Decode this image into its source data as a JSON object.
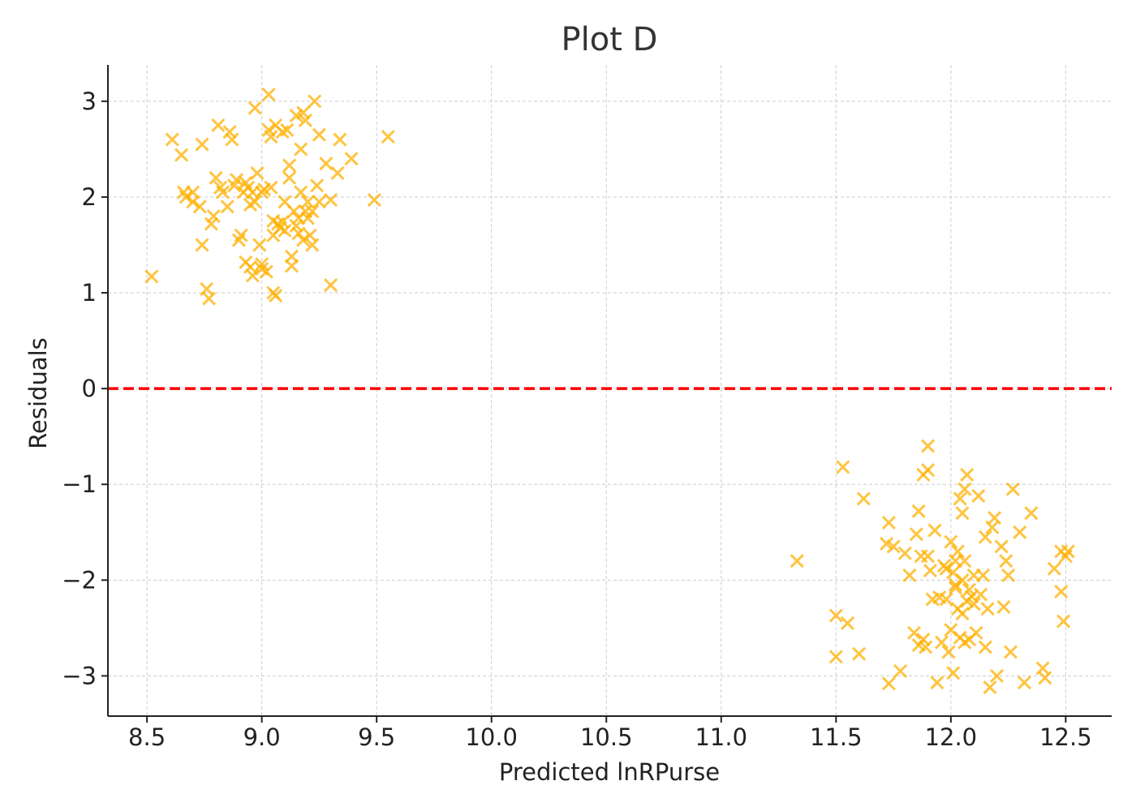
{
  "chart_data": {
    "type": "scatter",
    "title": "Plot D",
    "xlabel": "Predicted lnRPurse",
    "ylabel": "Residuals",
    "xlim": [
      8.33,
      12.7
    ],
    "ylim": [
      -3.42,
      3.38
    ],
    "xticks": [
      8.5,
      9.0,
      9.5,
      10.0,
      10.5,
      11.0,
      11.5,
      12.0,
      12.5
    ],
    "xtick_labels": [
      "8.5",
      "9.0",
      "9.5",
      "10.0",
      "10.5",
      "11.0",
      "11.5",
      "12.0",
      "12.5"
    ],
    "yticks": [
      3,
      2,
      1,
      0,
      -1,
      -2,
      -3
    ],
    "ytick_labels": [
      "3",
      "2",
      "1",
      "0",
      "−1",
      "−2",
      "−3"
    ],
    "grid": true,
    "reference_line": {
      "y": 0,
      "style": "dashed"
    },
    "marker": "x",
    "colors": {
      "points": "#FFB000",
      "reference_line": "#FF0000",
      "grid": "#cccccc",
      "axis": "#222222"
    },
    "series": [
      {
        "x": [
          8.52,
          8.61,
          8.65,
          8.66,
          8.67,
          8.7,
          8.73,
          8.74,
          8.74,
          8.76,
          8.77,
          8.78,
          8.79,
          8.8,
          8.81,
          8.83,
          8.85,
          8.86,
          8.87,
          8.88,
          8.9,
          8.91,
          8.92,
          8.93,
          8.94,
          8.95,
          8.96,
          8.96,
          8.97,
          8.98,
          8.99,
          9.0,
          9.0,
          9.02,
          9.03,
          9.03,
          9.04,
          9.04,
          9.05,
          9.05,
          9.06,
          9.06,
          9.07,
          9.08,
          9.09,
          9.1,
          9.11,
          9.12,
          9.13,
          9.13,
          9.14,
          9.15,
          9.15,
          9.16,
          9.16,
          9.17,
          9.17,
          9.18,
          9.18,
          9.19,
          9.19,
          9.2,
          9.2,
          9.21,
          9.22,
          9.23,
          9.24,
          9.25,
          9.25,
          9.28,
          9.3,
          9.3,
          9.33,
          9.34,
          9.39,
          9.49,
          9.55,
          8.7,
          8.82,
          8.93,
          8.97,
          9.0,
          9.05,
          9.1,
          9.12,
          9.22,
          8.89,
          8.95,
          9.01,
          9.09
        ],
        "y": [
          1.17,
          2.6,
          2.44,
          2.05,
          2.0,
          1.95,
          1.9,
          2.55,
          1.5,
          1.04,
          0.94,
          1.72,
          1.8,
          2.2,
          2.75,
          2.05,
          1.9,
          2.68,
          2.6,
          2.12,
          1.55,
          1.6,
          2.05,
          1.32,
          2.1,
          1.27,
          2.05,
          1.18,
          2.93,
          2.25,
          1.5,
          1.25,
          2.05,
          1.22,
          3.07,
          2.7,
          2.63,
          2.1,
          1.0,
          1.6,
          2.75,
          0.97,
          1.72,
          1.68,
          2.68,
          1.95,
          2.7,
          2.33,
          1.28,
          1.38,
          1.85,
          2.85,
          1.7,
          1.78,
          1.62,
          2.5,
          2.05,
          2.88,
          1.55,
          1.85,
          2.8,
          1.95,
          1.78,
          1.6,
          1.5,
          3.0,
          2.12,
          1.95,
          2.65,
          2.35,
          1.08,
          1.97,
          2.25,
          2.6,
          2.4,
          1.97,
          2.63,
          2.05,
          2.1,
          2.15,
          1.95,
          1.3,
          1.75,
          1.65,
          2.2,
          1.85,
          2.18,
          1.92,
          2.08,
          1.74
        ]
      },
      {
        "x": [
          11.33,
          11.5,
          11.5,
          11.53,
          11.55,
          11.6,
          11.62,
          11.72,
          11.73,
          11.73,
          11.75,
          11.78,
          11.8,
          11.82,
          11.84,
          11.85,
          11.86,
          11.87,
          11.88,
          11.88,
          11.89,
          11.9,
          11.9,
          11.91,
          11.92,
          11.93,
          11.94,
          11.95,
          11.96,
          11.97,
          11.98,
          11.99,
          12.0,
          12.0,
          12.01,
          12.01,
          12.02,
          12.02,
          12.03,
          12.03,
          12.04,
          12.04,
          12.05,
          12.05,
          12.06,
          12.06,
          12.07,
          12.07,
          12.08,
          12.08,
          12.09,
          12.1,
          12.11,
          12.12,
          12.13,
          12.14,
          12.15,
          12.15,
          12.16,
          12.17,
          12.18,
          12.19,
          12.2,
          12.22,
          12.23,
          12.24,
          12.25,
          12.26,
          12.27,
          12.3,
          12.32,
          12.35,
          12.4,
          12.41,
          12.45,
          12.48,
          12.48,
          12.49,
          12.5,
          12.51,
          11.9,
          11.98,
          12.05,
          12.1,
          12.02,
          12.06,
          11.86
        ],
        "y": [
          -1.8,
          -2.8,
          -2.37,
          -0.82,
          -2.45,
          -2.77,
          -1.15,
          -1.62,
          -1.4,
          -3.08,
          -1.65,
          -2.95,
          -1.72,
          -1.95,
          -2.55,
          -1.52,
          -2.68,
          -1.75,
          -2.62,
          -0.9,
          -2.7,
          -0.85,
          -0.6,
          -1.9,
          -2.2,
          -1.48,
          -3.07,
          -2.18,
          -2.65,
          -1.85,
          -2.2,
          -2.75,
          -2.52,
          -1.6,
          -1.92,
          -2.97,
          -1.8,
          -2.05,
          -2.3,
          -1.7,
          -1.15,
          -2.6,
          -1.3,
          -2.35,
          -1.05,
          -1.8,
          -2.22,
          -0.9,
          -2.62,
          -2.1,
          -2.17,
          -1.95,
          -2.55,
          -1.12,
          -2.15,
          -1.95,
          -1.55,
          -2.7,
          -2.3,
          -3.12,
          -1.45,
          -1.35,
          -3.0,
          -1.65,
          -2.28,
          -1.8,
          -1.95,
          -2.75,
          -1.05,
          -1.5,
          -3.07,
          -1.3,
          -2.92,
          -3.02,
          -1.88,
          -1.7,
          -2.12,
          -2.43,
          -1.75,
          -1.7,
          -1.75,
          -1.88,
          -2.0,
          -2.25,
          -2.08,
          -2.65,
          -1.28
        ]
      }
    ]
  }
}
